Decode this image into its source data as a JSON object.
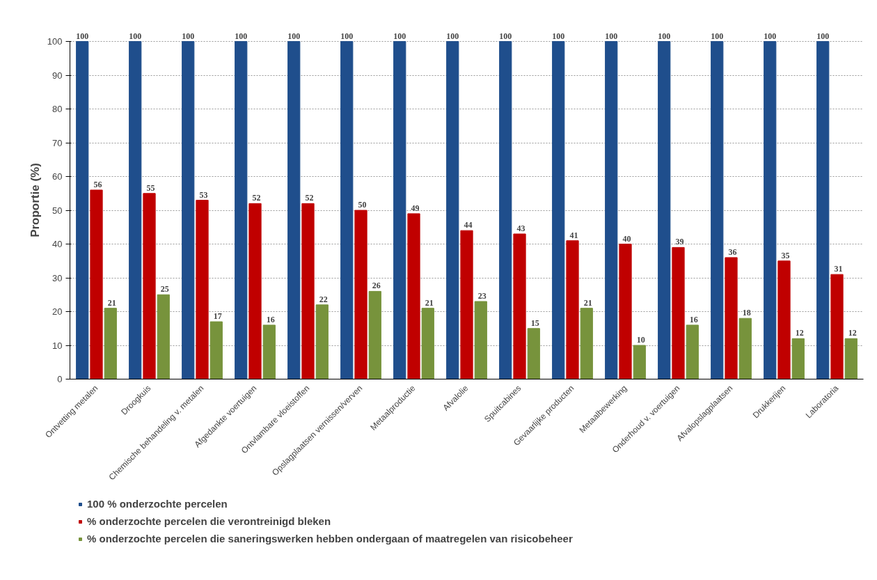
{
  "chart_data": {
    "type": "bar",
    "ylabel": "Proportie (%)",
    "categories": [
      "Ontvetting metalen",
      "Droogkuis",
      "Chemische behandeling v. metalen",
      "Afgedankte voertuigen",
      "Ontvlambare vloeistoffen",
      "Opslagplaatsen vernissen/verven",
      "Metaalproductie",
      "Afvalolie",
      "Spuitcabines",
      "Gevaarlijke producten",
      "Metaalbewerking",
      "Onderhoud v. voertuigen",
      "Afvalopslagplaatsen",
      "Drukkerijen",
      "Laboratoria"
    ],
    "series": [
      {
        "name": "100 % onderzochte percelen",
        "color": "#1f4e8c",
        "values": [
          100,
          100,
          100,
          100,
          100,
          100,
          100,
          100,
          100,
          100,
          100,
          100,
          100,
          100,
          100
        ]
      },
      {
        "name": "% onderzochte percelen die verontreinigd bleken",
        "color": "#c00000",
        "values": [
          56,
          55,
          53,
          52,
          52,
          50,
          49,
          44,
          43,
          41,
          40,
          39,
          36,
          35,
          31
        ]
      },
      {
        "name": "% onderzochte percelen die saneringswerken hebben ondergaan of maatregelen van risicobeheer",
        "color": "#77933c",
        "values": [
          21,
          25,
          17,
          16,
          22,
          26,
          21,
          23,
          15,
          21,
          10,
          16,
          18,
          12,
          12
        ]
      }
    ],
    "ylim": [
      0,
      100
    ],
    "yticks": [
      0,
      10,
      20,
      30,
      40,
      50,
      60,
      70,
      80,
      90,
      100
    ],
    "grid": "y",
    "legend": "bottom",
    "data_labels": true
  }
}
